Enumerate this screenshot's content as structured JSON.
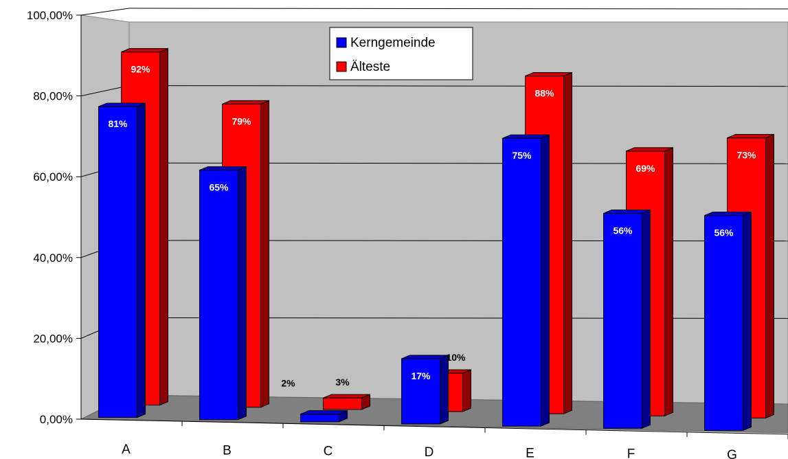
{
  "chart_data": {
    "type": "bar",
    "categories": [
      "A",
      "B",
      "C",
      "D",
      "E",
      "F",
      "G"
    ],
    "series": [
      {
        "name": "Kerngemeinde",
        "values": [
          81,
          65,
          2,
          17,
          75,
          56,
          56
        ],
        "labels": [
          "81%",
          "65%",
          "2%",
          "17%",
          "75%",
          "56%",
          "56%"
        ]
      },
      {
        "name": "Älteste",
        "values": [
          92,
          79,
          3,
          10,
          88,
          69,
          73
        ],
        "labels": [
          "92%",
          "79%",
          "3%",
          "10%",
          "88%",
          "69%",
          "73%"
        ]
      }
    ],
    "y_ticks": [
      "0,00%",
      "20,00%",
      "40,00%",
      "60,00%",
      "80,00%",
      "100,00%"
    ],
    "ylim": [
      0,
      100
    ],
    "grid": true,
    "legend_position": "top-center",
    "style": "3d-clustered-column",
    "colors": {
      "Kerngemeinde": "#0000ff",
      "Älteste": "#ff0000",
      "wall": "#c0c0c0",
      "floor": "#808080"
    }
  }
}
